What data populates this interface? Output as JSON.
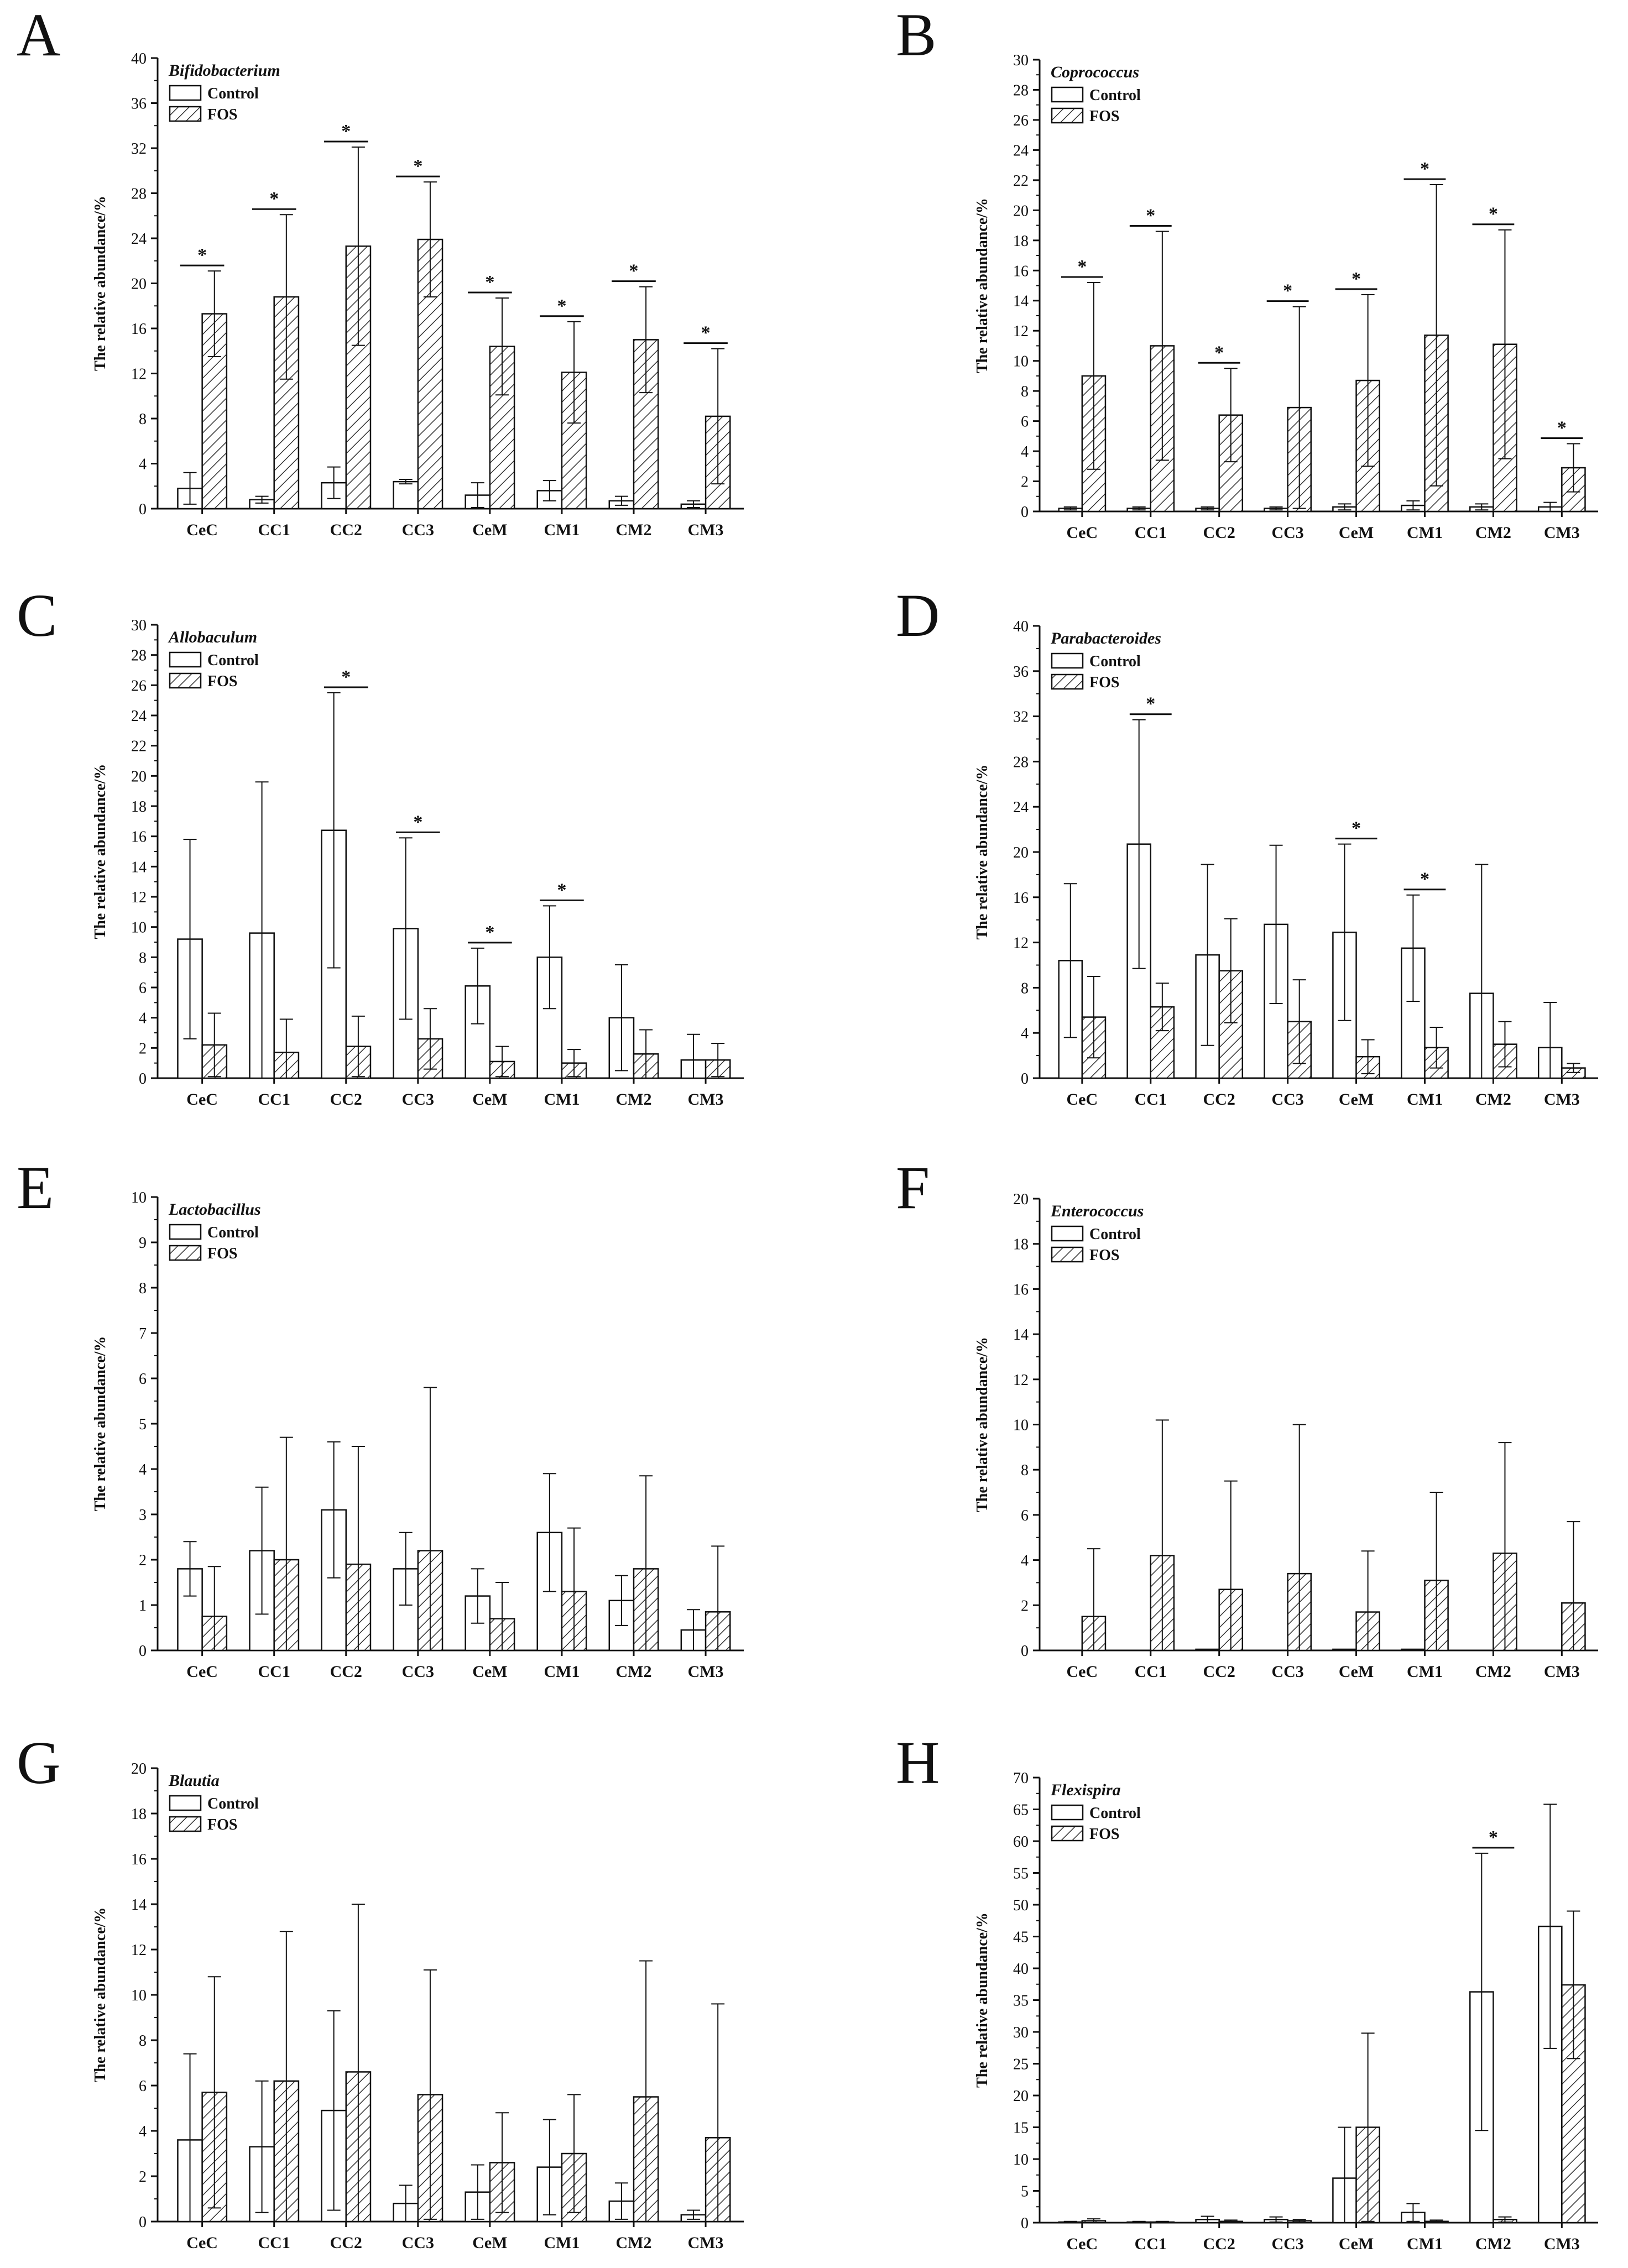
{
  "legend": {
    "control": "Control",
    "fos": "FOS"
  },
  "colors": {
    "stroke": "#111111",
    "background": "#ffffff"
  },
  "chart_data": [
    {
      "panel": "A",
      "type": "bar",
      "title": "Bifidobacterium",
      "ylabel": "The relative abundance/%",
      "xlabel": "",
      "categories": [
        "CeC",
        "CC1",
        "CC2",
        "CC3",
        "CeM",
        "CM1",
        "CM2",
        "CM3"
      ],
      "ylim": [
        0,
        40
      ],
      "yticks": [
        0,
        4,
        8,
        12,
        16,
        20,
        24,
        28,
        32,
        36,
        40
      ],
      "series": [
        {
          "name": "Control",
          "values": [
            1.8,
            0.8,
            2.3,
            2.4,
            1.2,
            1.6,
            0.7,
            0.4
          ],
          "errors": [
            1.4,
            0.3,
            1.4,
            0.2,
            1.1,
            0.9,
            0.4,
            0.3
          ]
        },
        {
          "name": "FOS",
          "values": [
            17.3,
            18.8,
            23.3,
            23.9,
            14.4,
            12.1,
            15.0,
            8.2
          ],
          "errors": [
            3.8,
            7.3,
            8.8,
            5.1,
            4.3,
            4.5,
            4.7,
            6.0
          ]
        }
      ],
      "significance": [
        "*",
        "*",
        "*",
        "*",
        "*",
        "*",
        "*",
        "*"
      ]
    },
    {
      "panel": "B",
      "type": "bar",
      "title": "Coprococcus",
      "ylabel": "The relative abundance/%",
      "xlabel": "",
      "categories": [
        "CeC",
        "CC1",
        "CC2",
        "CC3",
        "CeM",
        "CM1",
        "CM2",
        "CM3"
      ],
      "ylim": [
        0,
        30
      ],
      "yticks": [
        0,
        2,
        4,
        6,
        8,
        10,
        12,
        14,
        16,
        18,
        20,
        22,
        24,
        26,
        28,
        30
      ],
      "series": [
        {
          "name": "Control",
          "values": [
            0.2,
            0.2,
            0.2,
            0.2,
            0.3,
            0.4,
            0.3,
            0.3
          ],
          "errors": [
            0.1,
            0.1,
            0.1,
            0.1,
            0.2,
            0.3,
            0.2,
            0.3
          ]
        },
        {
          "name": "FOS",
          "values": [
            9.0,
            11.0,
            6.4,
            6.9,
            8.7,
            11.7,
            11.1,
            2.9
          ],
          "errors": [
            6.2,
            7.6,
            3.1,
            6.7,
            5.7,
            10.0,
            7.6,
            1.6
          ]
        }
      ],
      "significance": [
        "*",
        "*",
        "*",
        "*",
        "*",
        "*",
        "*",
        "*"
      ]
    },
    {
      "panel": "C",
      "type": "bar",
      "title": "Allobaculum",
      "ylabel": "The relative abundance/%",
      "xlabel": "",
      "categories": [
        "CeC",
        "CC1",
        "CC2",
        "CC3",
        "CeM",
        "CM1",
        "CM2",
        "CM3"
      ],
      "ylim": [
        0,
        30
      ],
      "yticks": [
        0,
        2,
        4,
        6,
        8,
        10,
        12,
        14,
        16,
        18,
        20,
        22,
        24,
        26,
        28,
        30
      ],
      "series": [
        {
          "name": "Control",
          "values": [
            9.2,
            9.6,
            16.4,
            9.9,
            6.1,
            8.0,
            4.0,
            1.2
          ],
          "errors": [
            6.6,
            10.0,
            9.1,
            6.0,
            2.5,
            3.4,
            3.5,
            1.7
          ]
        },
        {
          "name": "FOS",
          "values": [
            2.2,
            1.7,
            2.1,
            2.6,
            1.1,
            1.0,
            1.6,
            1.2
          ],
          "errors": [
            2.1,
            2.2,
            2.0,
            2.0,
            1.0,
            0.9,
            1.6,
            1.1
          ]
        }
      ],
      "significance": [
        "",
        "",
        "*",
        "*",
        "*",
        "*",
        "",
        ""
      ]
    },
    {
      "panel": "D",
      "type": "bar",
      "title": "Parabacteroides",
      "ylabel": "The relative abundance/%",
      "xlabel": "",
      "categories": [
        "CeC",
        "CC1",
        "CC2",
        "CC3",
        "CeM",
        "CM1",
        "CM2",
        "CM3"
      ],
      "ylim": [
        0,
        40
      ],
      "yticks": [
        0,
        4,
        8,
        12,
        16,
        20,
        24,
        28,
        32,
        36,
        40
      ],
      "series": [
        {
          "name": "Control",
          "values": [
            10.4,
            20.7,
            10.9,
            13.6,
            12.9,
            11.5,
            7.5,
            2.7
          ],
          "errors": [
            6.8,
            11.0,
            8.0,
            7.0,
            7.8,
            4.7,
            11.4,
            4.0
          ]
        },
        {
          "name": "FOS",
          "values": [
            5.4,
            6.3,
            9.5,
            5.0,
            1.9,
            2.7,
            3.0,
            0.9
          ],
          "errors": [
            3.6,
            2.1,
            4.6,
            3.7,
            1.5,
            1.8,
            2.0,
            0.4
          ]
        }
      ],
      "significance": [
        "",
        "*",
        "",
        "",
        "*",
        "*",
        "",
        ""
      ]
    },
    {
      "panel": "E",
      "type": "bar",
      "title": "Lactobacillus",
      "ylabel": "The relative abundance/%",
      "xlabel": "",
      "categories": [
        "CeC",
        "CC1",
        "CC2",
        "CC3",
        "CeM",
        "CM1",
        "CM2",
        "CM3"
      ],
      "ylim": [
        0,
        10
      ],
      "yticks": [
        0,
        1,
        2,
        3,
        4,
        5,
        6,
        7,
        8,
        9,
        10
      ],
      "series": [
        {
          "name": "Control",
          "values": [
            1.8,
            2.2,
            3.1,
            1.8,
            1.2,
            2.6,
            1.1,
            0.45
          ],
          "errors": [
            0.6,
            1.4,
            1.5,
            0.8,
            0.6,
            1.3,
            0.55,
            0.45
          ]
        },
        {
          "name": "FOS",
          "values": [
            0.75,
            2.0,
            1.9,
            2.2,
            0.7,
            1.3,
            1.8,
            0.85
          ],
          "errors": [
            1.1,
            2.7,
            2.6,
            3.6,
            0.8,
            1.4,
            2.05,
            1.45
          ]
        }
      ],
      "significance": [
        "",
        "",
        "",
        "",
        "",
        "",
        "",
        ""
      ]
    },
    {
      "panel": "F",
      "type": "bar",
      "title": "Enterococcus",
      "ylabel": "The relative abundance/%",
      "xlabel": "",
      "categories": [
        "CeC",
        "CC1",
        "CC2",
        "CC3",
        "CeM",
        "CM1",
        "CM2",
        "CM3"
      ],
      "ylim": [
        0,
        20
      ],
      "yticks": [
        0,
        2,
        4,
        6,
        8,
        10,
        12,
        14,
        16,
        18,
        20
      ],
      "series": [
        {
          "name": "Control",
          "values": [
            0,
            0,
            0.05,
            0,
            0.05,
            0.05,
            0,
            0
          ],
          "errors": [
            0,
            0,
            0,
            0,
            0,
            0,
            0,
            0
          ]
        },
        {
          "name": "FOS",
          "values": [
            1.5,
            4.2,
            2.7,
            3.4,
            1.7,
            3.1,
            4.3,
            2.1
          ],
          "errors": [
            3.0,
            6.0,
            4.8,
            6.6,
            2.7,
            3.9,
            4.9,
            3.6
          ]
        }
      ],
      "significance": [
        "",
        "",
        "",
        "",
        "",
        "",
        "",
        ""
      ]
    },
    {
      "panel": "G",
      "type": "bar",
      "title": "Blautia",
      "ylabel": "The relative abundance/%",
      "xlabel": "",
      "categories": [
        "CeC",
        "CC1",
        "CC2",
        "CC3",
        "CeM",
        "CM1",
        "CM2",
        "CM3"
      ],
      "ylim": [
        0,
        20
      ],
      "yticks": [
        0,
        2,
        4,
        6,
        8,
        10,
        12,
        14,
        16,
        18,
        20
      ],
      "series": [
        {
          "name": "Control",
          "values": [
            3.6,
            3.3,
            4.9,
            0.8,
            1.3,
            2.4,
            0.9,
            0.3
          ],
          "errors": [
            3.8,
            2.9,
            4.4,
            0.8,
            1.2,
            2.1,
            0.8,
            0.2
          ]
        },
        {
          "name": "FOS",
          "values": [
            5.7,
            6.2,
            6.6,
            5.6,
            2.6,
            3.0,
            5.5,
            3.7
          ],
          "errors": [
            5.1,
            6.6,
            7.4,
            5.5,
            2.2,
            2.6,
            6.0,
            5.9
          ]
        }
      ],
      "significance": [
        "",
        "",
        "",
        "",
        "",
        "",
        "",
        ""
      ]
    },
    {
      "panel": "H",
      "type": "bar",
      "title": "Flexispira",
      "ylabel": "The relative abundance/%",
      "xlabel": "",
      "categories": [
        "CeC",
        "CC1",
        "CC2",
        "CC3",
        "CeM",
        "CM1",
        "CM2",
        "CM3"
      ],
      "ylim": [
        0,
        70
      ],
      "yticks": [
        0,
        5,
        10,
        15,
        20,
        25,
        30,
        35,
        40,
        45,
        50,
        55,
        60,
        65,
        70
      ],
      "series": [
        {
          "name": "Control",
          "values": [
            0.1,
            0.1,
            0.5,
            0.5,
            7.0,
            1.6,
            36.3,
            46.6
          ],
          "errors": [
            0.1,
            0.1,
            0.5,
            0.4,
            8.0,
            1.4,
            21.8,
            19.2
          ]
        },
        {
          "name": "FOS",
          "values": [
            0.3,
            0.1,
            0.2,
            0.3,
            15.0,
            0.2,
            0.5,
            37.4
          ],
          "errors": [
            0.3,
            0.1,
            0.2,
            0.2,
            14.8,
            0.2,
            0.4,
            11.6
          ]
        }
      ],
      "significance": [
        "",
        "",
        "",
        "",
        "",
        "",
        "*",
        ""
      ]
    }
  ]
}
